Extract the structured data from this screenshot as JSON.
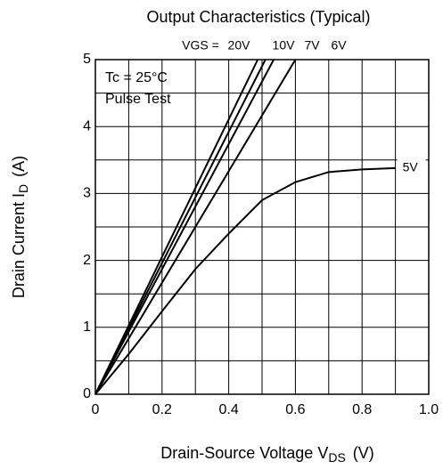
{
  "chart_data": {
    "type": "line",
    "title": "Output Characteristics (Typical)",
    "xlabel": "Drain-Source Voltage  V",
    "xlabel_sub": "DS",
    "xlabel_unit": "(V)",
    "ylabel": "Drain Current  I",
    "ylabel_sub": "D",
    "ylabel_unit": "(A)",
    "annotations": [
      "Tc = 25°C",
      "Pulse Test"
    ],
    "series_label": "VGS =",
    "xlim": [
      0,
      1
    ],
    "ylim": [
      0,
      5
    ],
    "xticks": [
      0,
      0.2,
      0.4,
      0.6,
      0.8,
      {
        "value": 1,
        "label": "1.0"
      }
    ],
    "yticks": [
      0,
      1,
      2,
      3,
      4,
      5
    ],
    "xgrid": [
      0.1,
      0.3,
      0.5,
      0.7,
      0.9
    ],
    "ygrid": [
      0.5,
      1.5,
      2.5,
      3.5,
      4.5
    ],
    "grid": true,
    "series": [
      {
        "name": "20V",
        "color": "#000000",
        "x": [
          0,
          0.487
        ],
        "values": [
          0,
          5
        ]
      },
      {
        "name": "10V",
        "color": "#000000",
        "x": [
          0,
          0.51
        ],
        "values": [
          0,
          5
        ]
      },
      {
        "name": "7V",
        "color": "#000000",
        "x": [
          0,
          0.535
        ],
        "values": [
          0,
          5
        ]
      },
      {
        "name": "6V",
        "color": "#000000",
        "x": [
          0,
          0.6
        ],
        "values": [
          0,
          5
        ]
      },
      {
        "name": "5V",
        "color": "#000000",
        "x": [
          0,
          0.1,
          0.2,
          0.3,
          0.4,
          0.5,
          0.6,
          0.7,
          0.8,
          0.9
        ],
        "values": [
          0,
          0.6,
          1.24,
          1.87,
          2.4,
          2.9,
          3.17,
          3.32,
          3.36,
          3.38
        ]
      }
    ]
  }
}
